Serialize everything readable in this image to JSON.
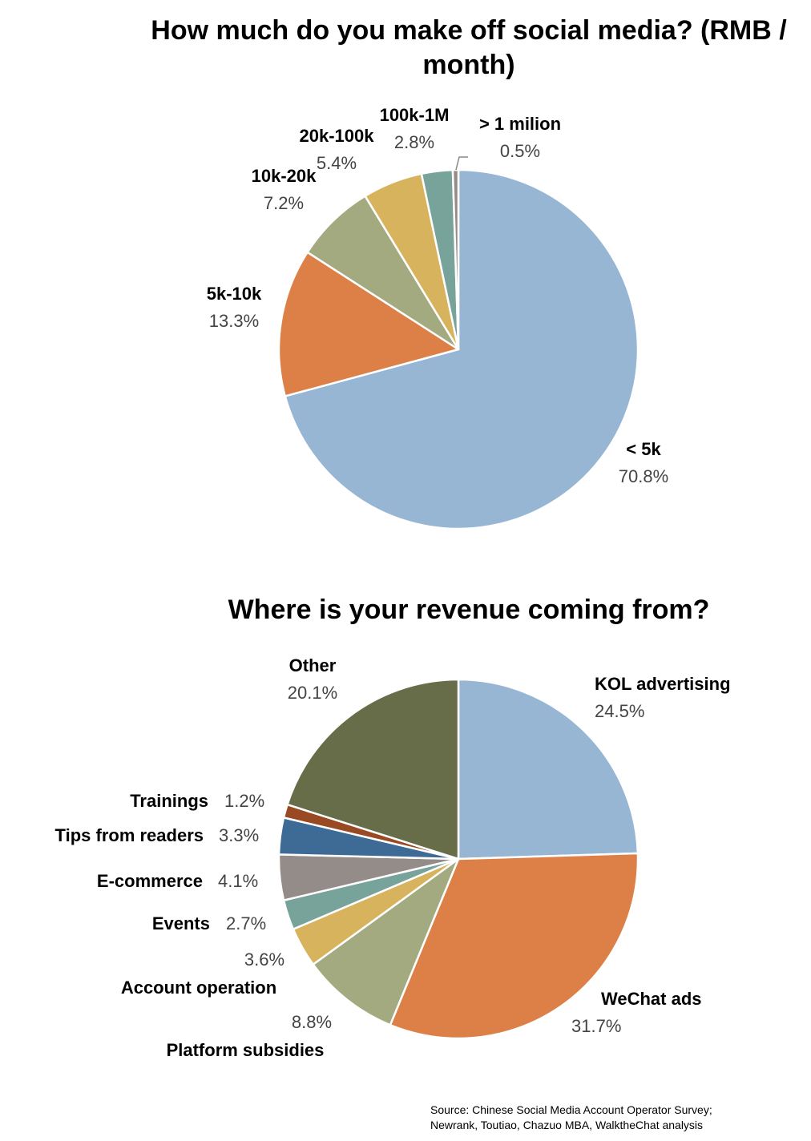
{
  "chart_data": [
    {
      "type": "pie",
      "title": "How much do you make off social media? (RMB / month)",
      "slices": [
        {
          "label": "< 5k",
          "value": 70.8,
          "display": "70.8%",
          "color": "#97b6d4"
        },
        {
          "label": "5k-10k",
          "value": 13.3,
          "display": "13.3%",
          "color": "#dd8047"
        },
        {
          "label": "10k-20k",
          "value": 7.2,
          "display": "7.2%",
          "color": "#a4aa80"
        },
        {
          "label": "20k-100k",
          "value": 5.4,
          "display": "5.4%",
          "color": "#d8b35d"
        },
        {
          "label": "100k-1M",
          "value": 2.8,
          "display": "2.8%",
          "color": "#78a39b"
        },
        {
          "label": "> 1 milion",
          "value": 0.5,
          "display": "0.5%",
          "color": "#948c89"
        }
      ]
    },
    {
      "type": "pie",
      "title": "Where is your revenue coming from?",
      "slices": [
        {
          "label": "KOL advertising",
          "value": 24.5,
          "display": "24.5%",
          "color": "#97b6d4"
        },
        {
          "label": "WeChat ads",
          "value": 31.7,
          "display": "31.7%",
          "color": "#dd8047"
        },
        {
          "label": "Platform subsidies",
          "value": 8.8,
          "display": "8.8%",
          "color": "#a4aa80"
        },
        {
          "label": "Account operation",
          "value": 3.6,
          "display": "3.6%",
          "color": "#d8b35d"
        },
        {
          "label": "Events",
          "value": 2.7,
          "display": "2.7%",
          "color": "#78a39b"
        },
        {
          "label": "E-commerce",
          "value": 4.1,
          "display": "4.1%",
          "color": "#948c89"
        },
        {
          "label": "Tips from readers",
          "value": 3.3,
          "display": "3.3%",
          "color": "#3e6b96"
        },
        {
          "label": "Trainings",
          "value": 1.2,
          "display": "1.2%",
          "color": "#9a4a22"
        },
        {
          "label": "Other",
          "value": 20.1,
          "display": "20.1%",
          "color": "#676d49"
        }
      ]
    }
  ],
  "source": {
    "line1": "Source: Chinese Social Media Account Operator Survey;",
    "line2": "Newrank, Toutiao, Chazuo MBA, WalktheChat analysis"
  }
}
